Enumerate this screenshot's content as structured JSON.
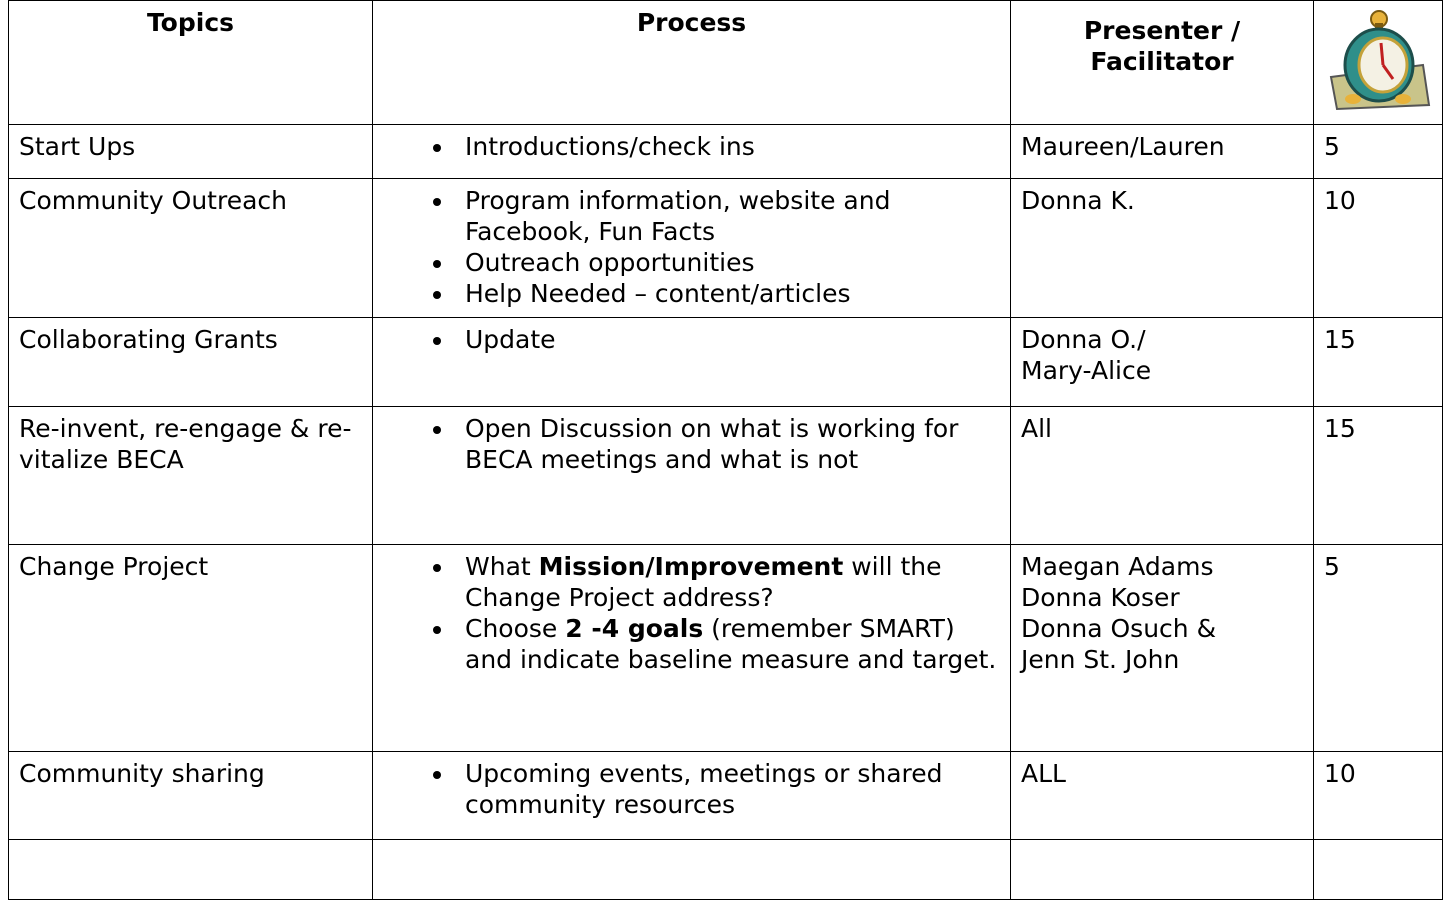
{
  "table": {
    "header": [
      "Topics",
      "Process",
      "Presenter / Facilitator"
    ],
    "rows": [
      {
        "topic": "Start Ups",
        "process": [
          [
            {
              "text": "Introductions/check ins"
            }
          ]
        ],
        "presenter": [
          "Maureen/Lauren"
        ],
        "minutes": "5"
      },
      {
        "topic": "Community Outreach",
        "process": [
          [
            {
              "text": "Program information, website and Facebook, Fun Facts"
            }
          ],
          [
            {
              "text": "Outreach opportunities"
            }
          ],
          [
            {
              "text": "Help Needed – content/articles"
            }
          ]
        ],
        "presenter": [
          "Donna K."
        ],
        "minutes": "10"
      },
      {
        "topic": "Collaborating Grants",
        "process": [
          [
            {
              "text": "Update"
            }
          ]
        ],
        "presenter": [
          "Donna O./",
          "Mary-Alice"
        ],
        "minutes": "15"
      },
      {
        "topic": "Re-invent, re-engage & re-vitalize  BECA",
        "process": [
          [
            {
              "text": "Open Discussion on what is working for BECA meetings and what is not"
            }
          ]
        ],
        "presenter": [
          "All"
        ],
        "minutes": "15"
      },
      {
        "topic": "Change Project",
        "process": [
          [
            {
              "text": "What "
            },
            {
              "text": "Mission/Improvement",
              "bold": true
            },
            {
              "text": " will the Change Project address?"
            }
          ],
          [
            {
              "text": "Choose "
            },
            {
              "text": "2 -4 goals",
              "bold": true
            },
            {
              "text": " (remember SMART) and indicate baseline measure and target."
            }
          ]
        ],
        "presenter": [
          "Maegan Adams",
          "Donna Koser",
          "Donna Osuch &",
          "Jenn St. John"
        ],
        "minutes": "5"
      },
      {
        "topic": "Community sharing",
        "process": [
          [
            {
              "text": "Upcoming events, meetings or shared community resources"
            }
          ]
        ],
        "presenter": [
          "ALL"
        ],
        "minutes": "10"
      }
    ]
  }
}
